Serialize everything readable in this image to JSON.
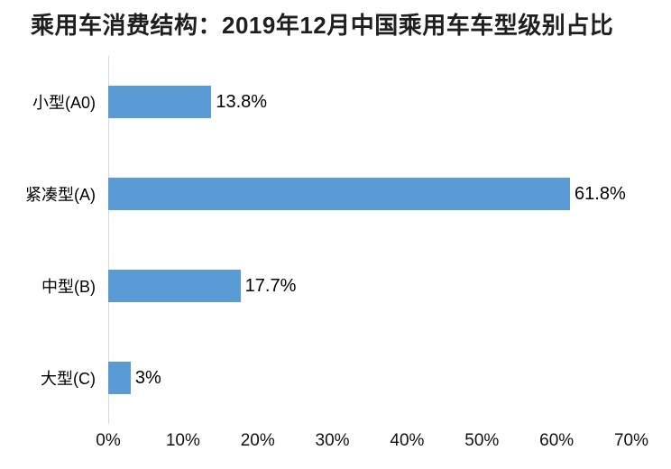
{
  "chart_data": {
    "type": "bar",
    "orientation": "horizontal",
    "title": "乘用车消费结构：2019年12月中国乘用车车型级别占比",
    "categories": [
      "小型(A0)",
      "紧凑型(A)",
      "中型(B)",
      "大型(C)"
    ],
    "values": [
      13.8,
      61.8,
      17.7,
      3
    ],
    "value_labels": [
      "13.8%",
      "61.8%",
      "17.7%",
      "3%"
    ],
    "xlabel": "",
    "ylabel": "",
    "xlim": [
      0,
      70
    ],
    "x_tick_values": [
      0,
      10,
      20,
      30,
      40,
      50,
      60,
      70
    ],
    "x_tick_labels": [
      "0%",
      "10%",
      "20%",
      "30%",
      "40%",
      "50%",
      "60%",
      "70%"
    ],
    "grid": false,
    "legend": false,
    "legend_position": "none",
    "bar_color": "#5B9BD5",
    "axis_line_color": "#D9D9D9",
    "text_color": "#000000"
  }
}
